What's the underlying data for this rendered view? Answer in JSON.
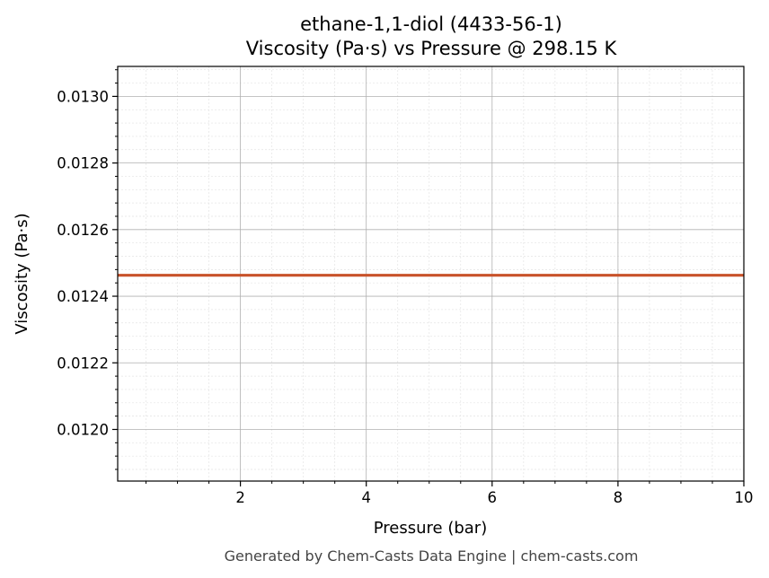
{
  "chart_data": {
    "type": "line",
    "title": "ethane-1,1-diol (4433-56-1)",
    "subtitle": "Viscosity (Pa·s) vs Pressure @ 298.15 K",
    "xlabel": "Pressure (bar)",
    "ylabel": "Viscosity (Pa·s)",
    "xlim": [
      0.05,
      10
    ],
    "ylim": [
      0.011845,
      0.01309
    ],
    "x_ticks": [
      2,
      4,
      6,
      8,
      10
    ],
    "x_tick_labels": [
      "2",
      "4",
      "6",
      "8",
      "10"
    ],
    "y_ticks": [
      0.012,
      0.0122,
      0.0124,
      0.0126,
      0.0128,
      0.013
    ],
    "y_tick_labels": [
      "0.0120",
      "0.0122",
      "0.0124",
      "0.0126",
      "0.0128",
      "0.0130"
    ],
    "grid": true,
    "series": [
      {
        "color": "#c8522a",
        "x": [
          0.05,
          1,
          2,
          3,
          4,
          5,
          6,
          7,
          8,
          9,
          10
        ],
        "y": [
          0.012463,
          0.012463,
          0.012463,
          0.012463,
          0.012463,
          0.012463,
          0.012463,
          0.012463,
          0.012463,
          0.012463,
          0.012463
        ]
      }
    ]
  },
  "footer": "Generated by Chem-Casts Data Engine | chem-casts.com"
}
